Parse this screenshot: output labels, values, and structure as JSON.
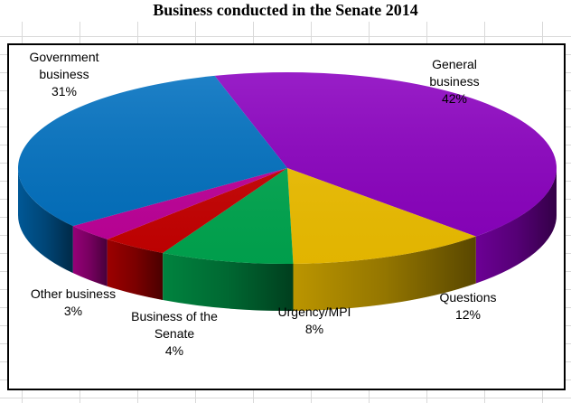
{
  "chart_data": {
    "type": "pie",
    "title": "Business conducted in the Senate 2014",
    "categories": [
      "General business",
      "Questions",
      "Urgency/MPI",
      "Business of the Senate",
      "Other business",
      "Government business"
    ],
    "values": [
      42,
      12,
      8,
      4,
      3,
      31
    ],
    "value_format": "percent",
    "labels": [
      {
        "lines": [
          "General",
          "business"
        ],
        "pct": "42%"
      },
      {
        "lines": [
          "Questions"
        ],
        "pct": "12%"
      },
      {
        "lines": [
          "Urgency/MPI"
        ],
        "pct": "8%"
      },
      {
        "lines": [
          "Business of the",
          "Senate"
        ],
        "pct": "4%"
      },
      {
        "lines": [
          "Other business"
        ],
        "pct": "3%"
      },
      {
        "lines": [
          "Government",
          "business"
        ],
        "pct": "31%"
      }
    ],
    "colors": [
      "#8b00c0",
      "#f0c000",
      "#00a850",
      "#c80000",
      "#c0009a",
      "#0070c0"
    ],
    "start_angle_deg": 254.35,
    "direction": "clockwise",
    "three_d": true,
    "legend": "none"
  }
}
